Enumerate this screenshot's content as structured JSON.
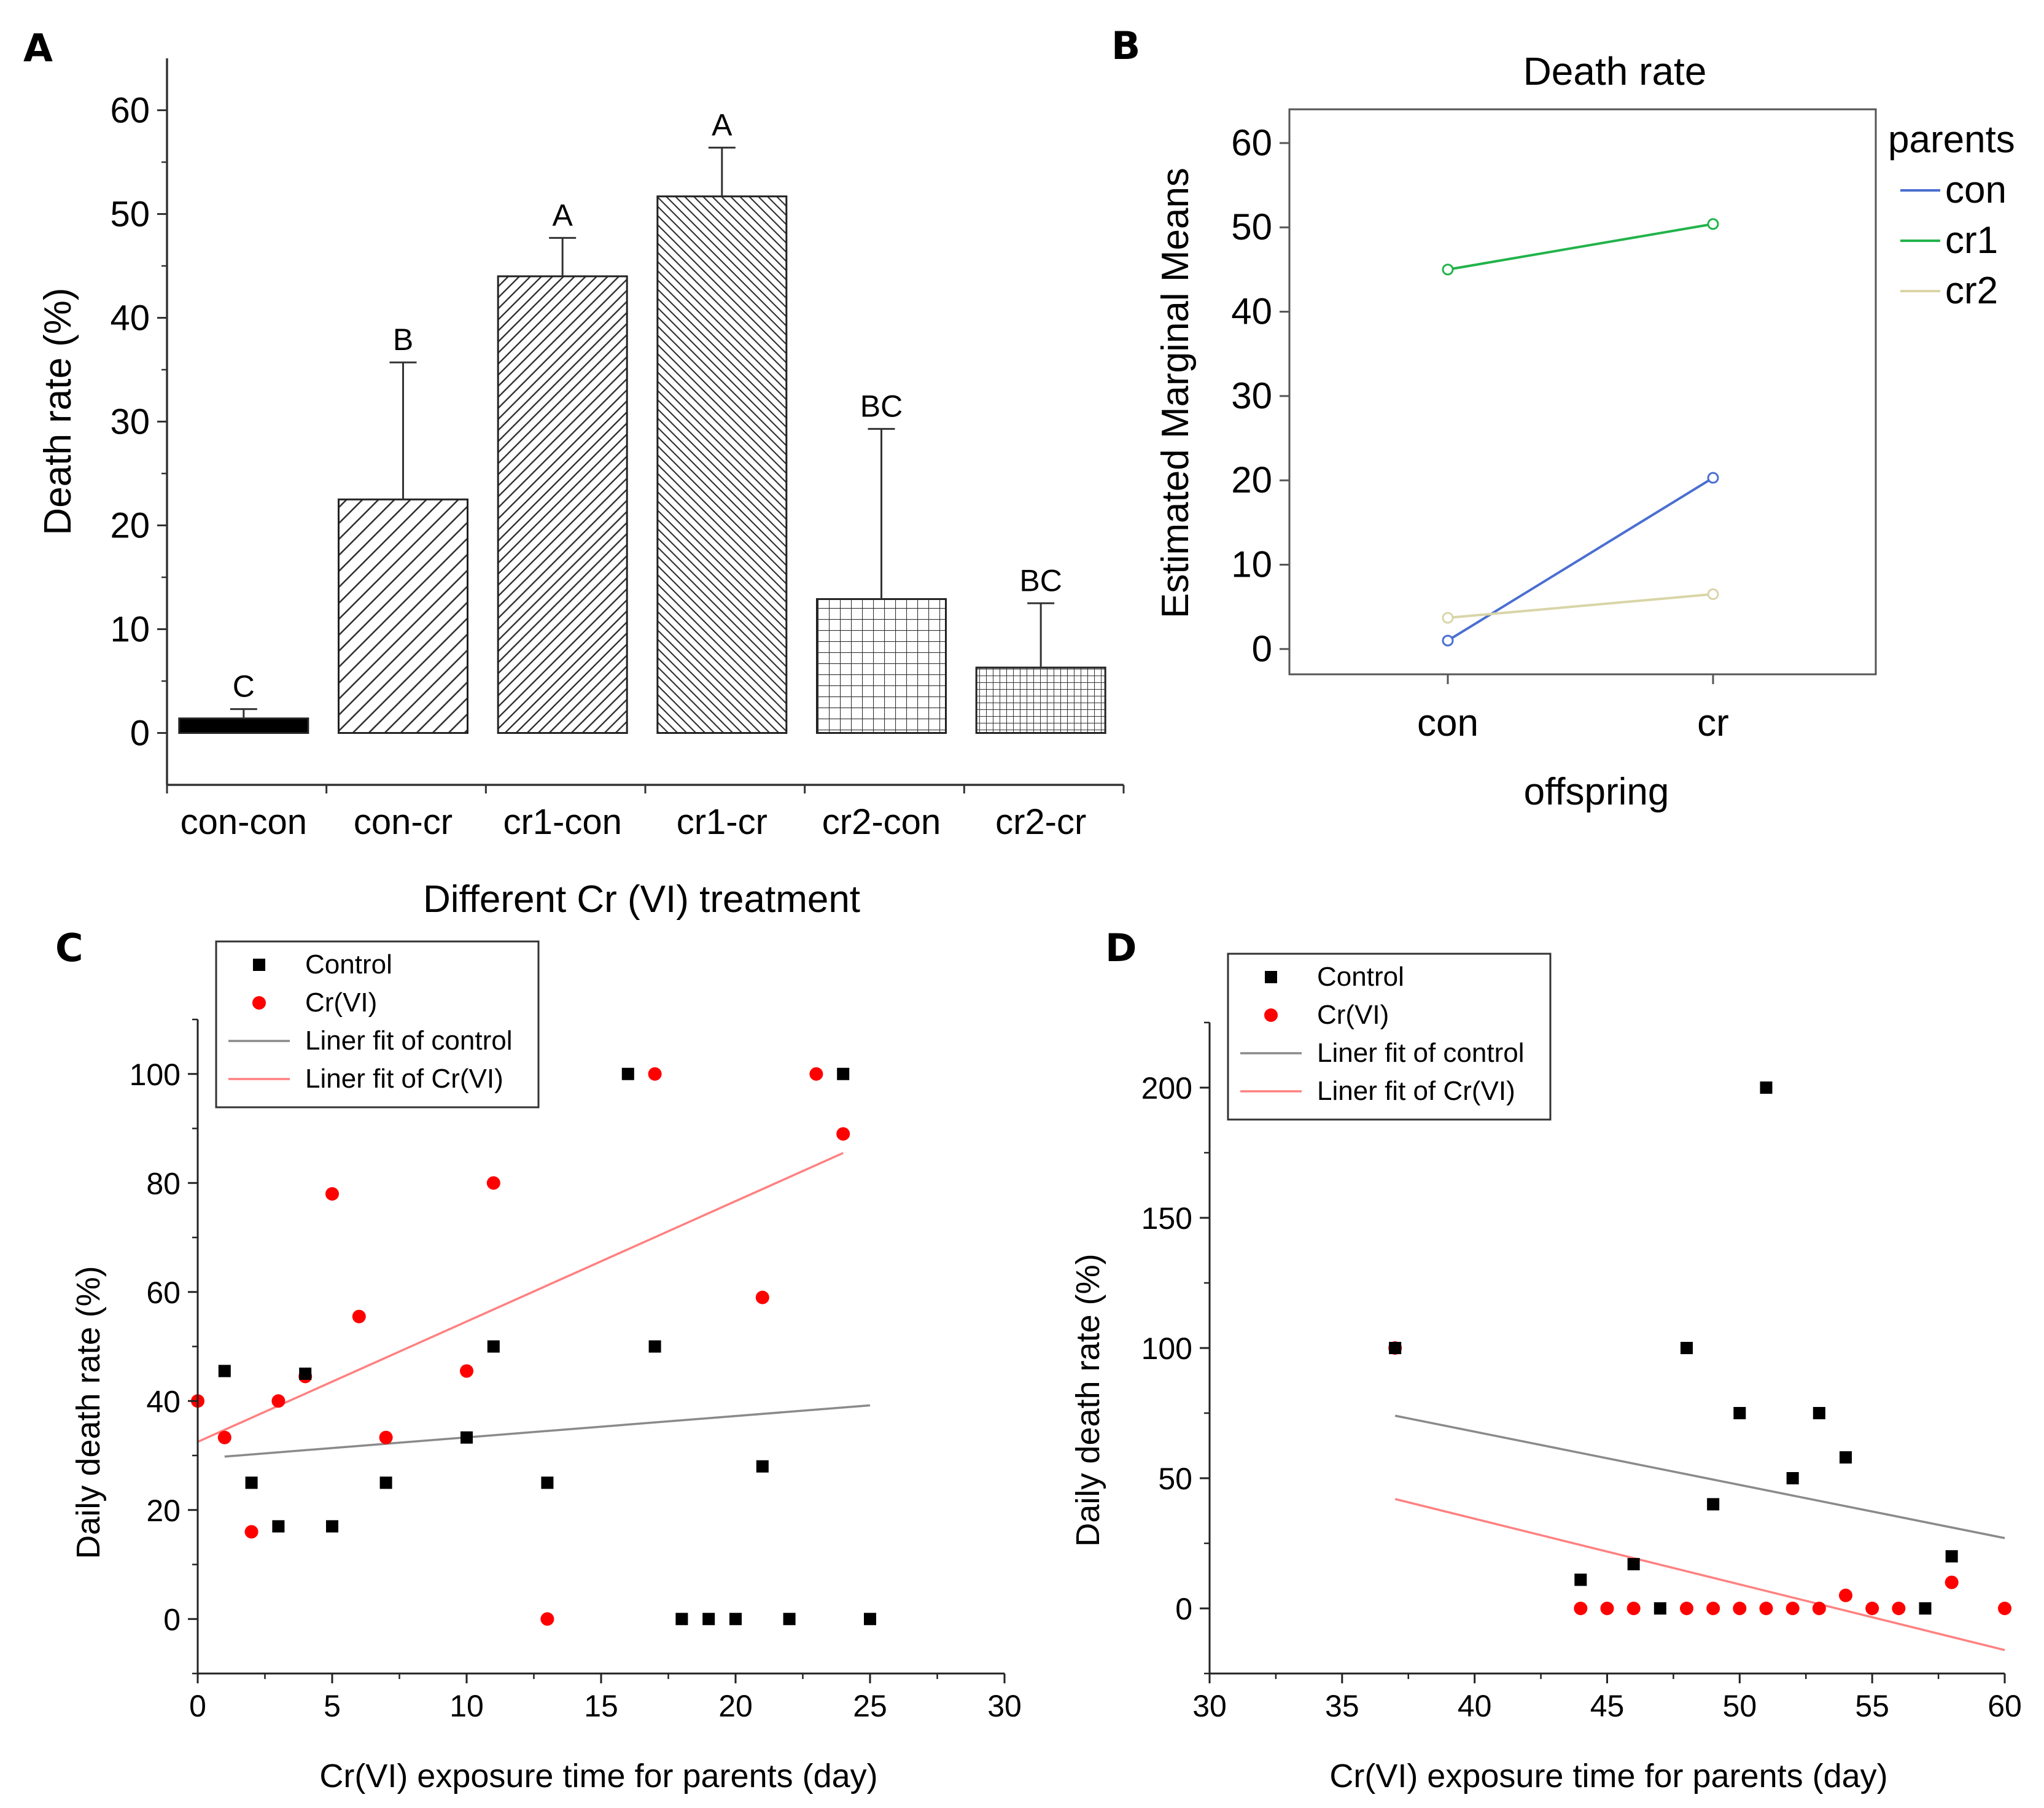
{
  "colors": {
    "axis": "#333333",
    "black_fill": "#000000",
    "con": "#4a6fd1",
    "cr1": "#22b34b",
    "cr2": "#d9d5a8",
    "control_marker": "#000000",
    "cr_marker": "#ff0000",
    "fit_control": "#8a8a8a",
    "fit_cr": "#ff8080"
  },
  "chart_data": [
    {
      "panel": "A",
      "type": "bar",
      "title": "",
      "xlabel": "Different Cr (VI) treatment",
      "ylabel": "Death rate (%)",
      "ylim": [
        -5,
        65
      ],
      "yticks": [
        0,
        10,
        20,
        30,
        40,
        50,
        60
      ],
      "categories": [
        "con-con",
        "con-cr",
        "cr1-con",
        "cr1-cr",
        "cr2-con",
        "cr2-cr"
      ],
      "values": [
        1.4,
        22.5,
        44.0,
        51.7,
        12.9,
        6.3
      ],
      "errors": [
        0.9,
        13.2,
        3.7,
        4.7,
        16.4,
        6.2
      ],
      "letters": [
        "C",
        "B",
        "A",
        "A",
        "BC",
        "BC"
      ],
      "fills": [
        "solid",
        "diag-right",
        "diag-right-dense",
        "diag-left",
        "grid",
        "grid-dense"
      ]
    },
    {
      "panel": "B",
      "type": "line",
      "title": "Death rate",
      "xlabel": "offspring",
      "ylabel": "Estimated Marginal Means",
      "ylim": [
        -3,
        64
      ],
      "yticks": [
        0,
        10,
        20,
        30,
        40,
        50,
        60
      ],
      "categories": [
        "con",
        "cr"
      ],
      "legend_title": "parents",
      "legend_position": "right",
      "series": [
        {
          "name": "con",
          "values": [
            1.0,
            20.3
          ]
        },
        {
          "name": "cr1",
          "values": [
            45.0,
            50.4
          ]
        },
        {
          "name": "cr2",
          "values": [
            3.7,
            6.5
          ]
        }
      ]
    },
    {
      "panel": "C",
      "type": "scatter",
      "xlabel": "Cr(VI) exposure time for parents (day)",
      "ylabel": "Daily death rate (%)",
      "xlim": [
        0,
        30
      ],
      "ylim": [
        -10,
        110
      ],
      "xticks": [
        0,
        5,
        10,
        15,
        20,
        25,
        30
      ],
      "yticks": [
        0,
        20,
        40,
        60,
        80,
        100
      ],
      "legend_position": "top-left",
      "legend": [
        "Control",
        "Cr(VI)",
        "Liner fit of control",
        "Liner fit of Cr(VI)"
      ],
      "series": [
        {
          "name": "Control",
          "marker": "square",
          "x": [
            1,
            2,
            3,
            4,
            5,
            7,
            10,
            11,
            13,
            16,
            17,
            18,
            19,
            20,
            21,
            22,
            24,
            25
          ],
          "y": [
            45.5,
            25,
            17,
            45,
            17,
            25,
            33.3,
            50,
            25,
            100,
            50,
            0,
            0,
            0,
            28,
            0,
            100,
            0
          ]
        },
        {
          "name": "Cr(VI)",
          "marker": "circle",
          "x": [
            0,
            1,
            2,
            3,
            4,
            5,
            6,
            7,
            10,
            11,
            13,
            17,
            21,
            23,
            24
          ],
          "y": [
            40,
            33.3,
            16,
            40,
            44.5,
            78,
            55.5,
            33.3,
            45.5,
            80,
            0,
            100,
            59,
            100,
            89
          ]
        }
      ],
      "fits": [
        {
          "name": "Liner fit of control",
          "x": [
            1,
            25
          ],
          "y": [
            29.8,
            39.2
          ]
        },
        {
          "name": "Liner fit of Cr(VI)",
          "x": [
            0,
            24
          ],
          "y": [
            32.5,
            85.5
          ]
        }
      ]
    },
    {
      "panel": "D",
      "type": "scatter",
      "xlabel": "Cr(VI) exposure time for parents (day)",
      "ylabel": "Daily death rate (%)",
      "xlim": [
        30,
        60
      ],
      "ylim": [
        -25,
        225
      ],
      "xticks": [
        30,
        35,
        40,
        45,
        50,
        55,
        60
      ],
      "yticks": [
        0,
        50,
        100,
        150,
        200
      ],
      "legend_position": "top-left",
      "legend": [
        "Control",
        "Cr(VI)",
        "Liner fit of control",
        "Liner fit of Cr(VI)"
      ],
      "series": [
        {
          "name": "Control",
          "marker": "square",
          "x": [
            37,
            44,
            46,
            47,
            48,
            49,
            50,
            51,
            52,
            53,
            54,
            57,
            58
          ],
          "y": [
            100,
            11,
            17,
            0,
            100,
            40,
            75,
            200,
            50,
            75,
            58,
            0,
            20
          ]
        },
        {
          "name": "Cr(VI)",
          "marker": "circle",
          "x": [
            37,
            44,
            45,
            46,
            48,
            49,
            50,
            51,
            52,
            53,
            54,
            55,
            56,
            58,
            60
          ],
          "y": [
            100,
            0,
            0,
            0,
            0,
            0,
            0,
            0,
            0,
            0,
            5,
            0,
            0,
            10,
            0
          ]
        }
      ],
      "fits": [
        {
          "name": "Liner fit of control",
          "x": [
            37,
            60
          ],
          "y": [
            74,
            27
          ]
        },
        {
          "name": "Liner fit of Cr(VI)",
          "x": [
            37,
            60
          ],
          "y": [
            42,
            -16
          ]
        }
      ]
    }
  ]
}
